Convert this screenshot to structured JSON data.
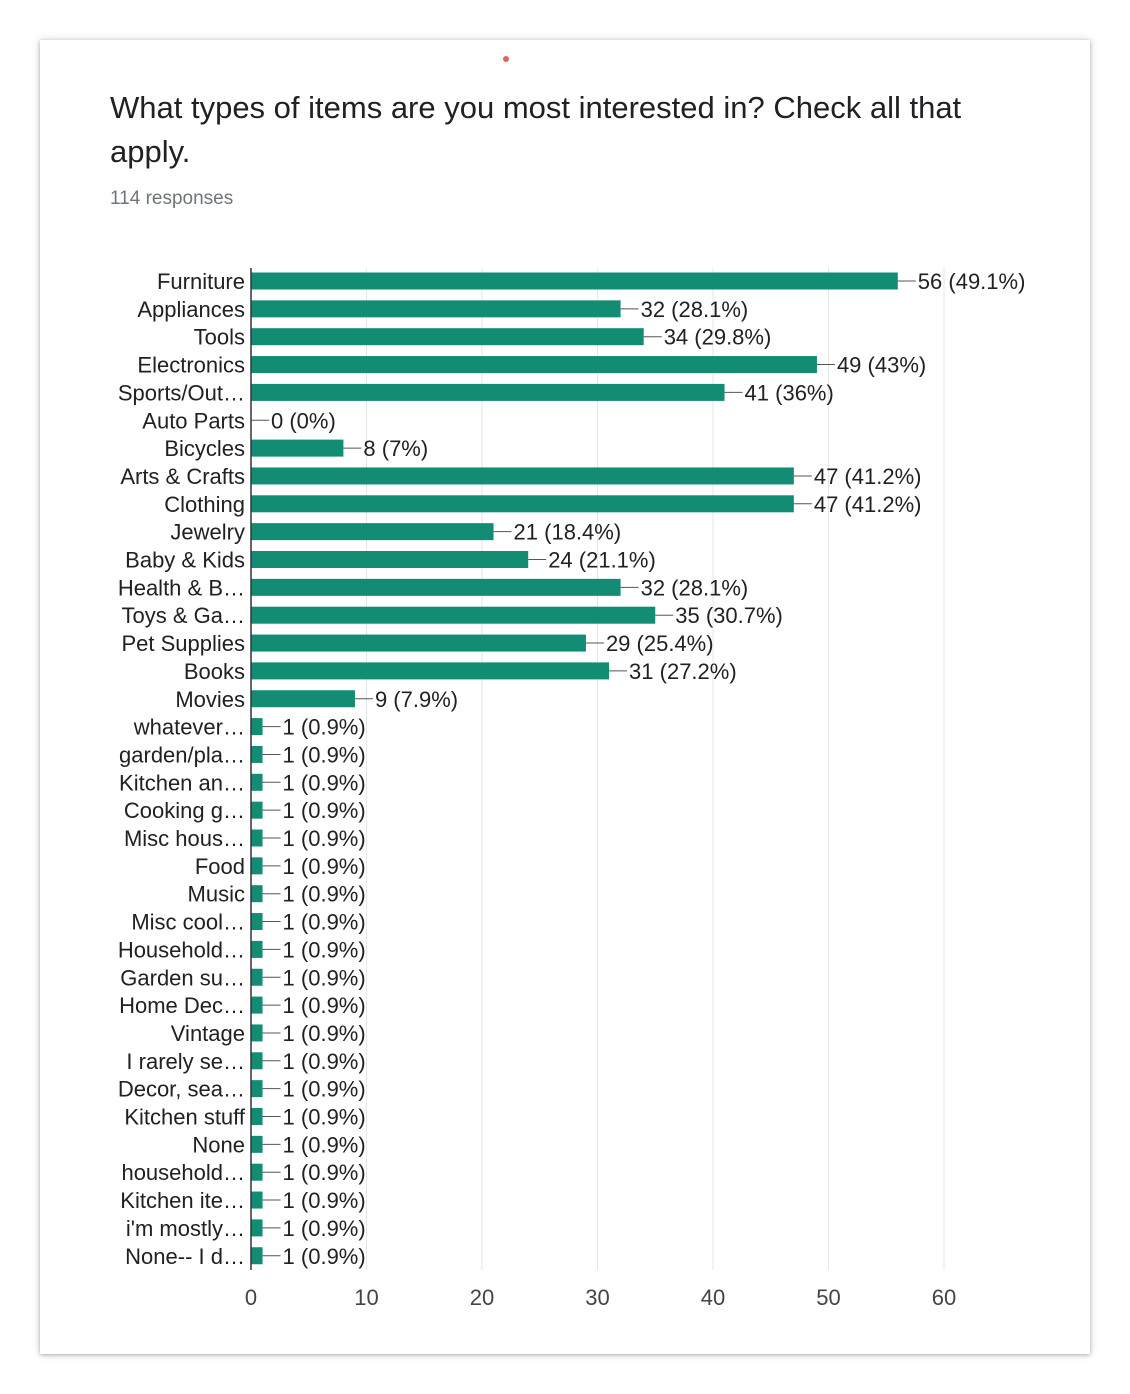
{
  "question": {
    "title": "What types of items are you most interested in? Check all that apply.",
    "responses": "114 responses"
  },
  "colors": {
    "bar": "#128c73",
    "grid": "#e6e6e6",
    "axis": "#333333",
    "text": "#202124"
  },
  "chart_data": {
    "type": "bar",
    "orientation": "horizontal",
    "categories": [
      "Furniture",
      "Appliances",
      "Tools",
      "Electronics",
      "Sports/Out…",
      "Auto Parts",
      "Bicycles",
      "Arts & Crafts",
      "Clothing",
      "Jewelry",
      "Baby & Kids",
      "Health & B…",
      "Toys & Ga…",
      "Pet Supplies",
      "Books",
      "Movies",
      "whatever…",
      "garden/pla…",
      "Kitchen an…",
      "Cooking g…",
      "Misc hous…",
      "Food",
      "Music",
      "Misc cool…",
      "Household…",
      "Garden su…",
      "Home Dec…",
      "Vintage",
      "I rarely se…",
      "Decor, sea…",
      "Kitchen stuff",
      "None",
      "household…",
      "Kitchen ite…",
      "i'm mostly…",
      "None-- I d…"
    ],
    "values": [
      56,
      32,
      34,
      49,
      41,
      0,
      8,
      47,
      47,
      21,
      24,
      32,
      35,
      29,
      31,
      9,
      1,
      1,
      1,
      1,
      1,
      1,
      1,
      1,
      1,
      1,
      1,
      1,
      1,
      1,
      1,
      1,
      1,
      1,
      1,
      1
    ],
    "value_labels": [
      "56 (49.1%)",
      "32 (28.1%)",
      "34 (29.8%)",
      "49 (43%)",
      "41 (36%)",
      "0 (0%)",
      "8 (7%)",
      "47 (41.2%)",
      "47 (41.2%)",
      "21 (18.4%)",
      "24 (21.1%)",
      "32 (28.1%)",
      "35 (30.7%)",
      "29 (25.4%)",
      "31 (27.2%)",
      "9 (7.9%)",
      "1 (0.9%)",
      "1 (0.9%)",
      "1 (0.9%)",
      "1 (0.9%)",
      "1 (0.9%)",
      "1 (0.9%)",
      "1 (0.9%)",
      "1 (0.9%)",
      "1 (0.9%)",
      "1 (0.9%)",
      "1 (0.9%)",
      "1 (0.9%)",
      "1 (0.9%)",
      "1 (0.9%)",
      "1 (0.9%)",
      "1 (0.9%)",
      "1 (0.9%)",
      "1 (0.9%)",
      "1 (0.9%)",
      "1 (0.9%)"
    ],
    "xlim": [
      0,
      60
    ],
    "xticks": [
      0,
      10,
      20,
      30,
      40,
      50,
      60
    ],
    "xtick_labels": [
      "0",
      "10",
      "20",
      "30",
      "40",
      "50",
      "60"
    ],
    "grid": true
  }
}
